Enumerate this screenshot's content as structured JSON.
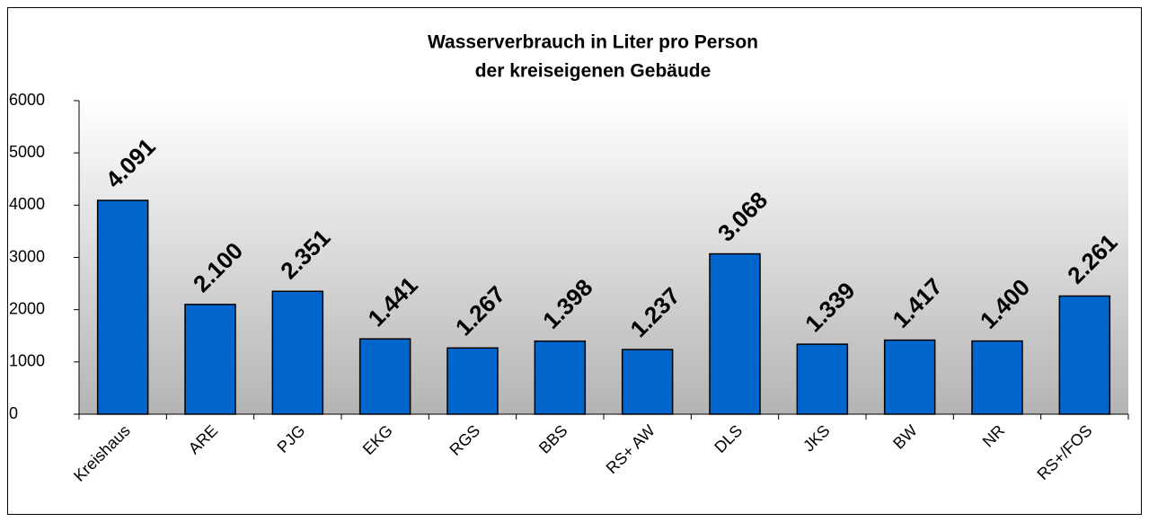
{
  "chart_data": {
    "type": "bar",
    "title": [
      "Wasserverbrauch in Liter pro Person",
      "der kreiseigenen Gebäude"
    ],
    "categories": [
      "Kreishaus",
      "ARE",
      "PJG",
      "EKG",
      "RGS",
      "BBS",
      "RS+ AW",
      "DLS",
      "JKS",
      "BW",
      "NR",
      "RS+/FOS"
    ],
    "values": [
      4091,
      2100,
      2351,
      1441,
      1267,
      1398,
      1237,
      3068,
      1339,
      1417,
      1400,
      2261
    ],
    "value_labels": [
      "4.091",
      "2.100",
      "2.351",
      "1.441",
      "1.267",
      "1.398",
      "1.237",
      "3.068",
      "1.339",
      "1.417",
      "1.400",
      "2.261"
    ],
    "color": "#0066cc",
    "ylim": [
      0,
      6000
    ],
    "yticks": [
      0,
      1000,
      2000,
      3000,
      4000,
      5000,
      6000
    ]
  }
}
